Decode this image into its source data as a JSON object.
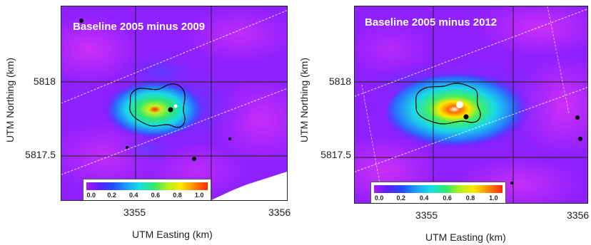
{
  "panels": [
    {
      "title": "Baseline 2005 minus 2009",
      "ylabel": "UTM Northing (km)",
      "xlabel": "UTM Easting (km)",
      "yticks": [
        "5818",
        "5817.5"
      ],
      "xticks": [
        "3355",
        "3356"
      ],
      "colorbar_ticks": [
        "0.0",
        "0.2",
        "0.4",
        "0.6",
        "0.8",
        "1.0"
      ],
      "colorbar_range": [
        0.0,
        1.0
      ]
    },
    {
      "title": "Baseline 2005 minus 2012",
      "ylabel": "UTM Northing (km)",
      "xlabel": "UTM Easting (km)",
      "yticks": [
        "5818",
        "5817.5"
      ],
      "xticks": [
        "3355",
        "3356"
      ],
      "colorbar_ticks": [
        "0.0",
        "0.2",
        "0.4",
        "0.6",
        "0.8",
        "1.0"
      ],
      "colorbar_range": [
        0.0,
        1.0
      ]
    }
  ],
  "colors": {
    "background_purple": "#a01cff",
    "high_value_red": "#ff2a00",
    "contour": "#000000"
  }
}
